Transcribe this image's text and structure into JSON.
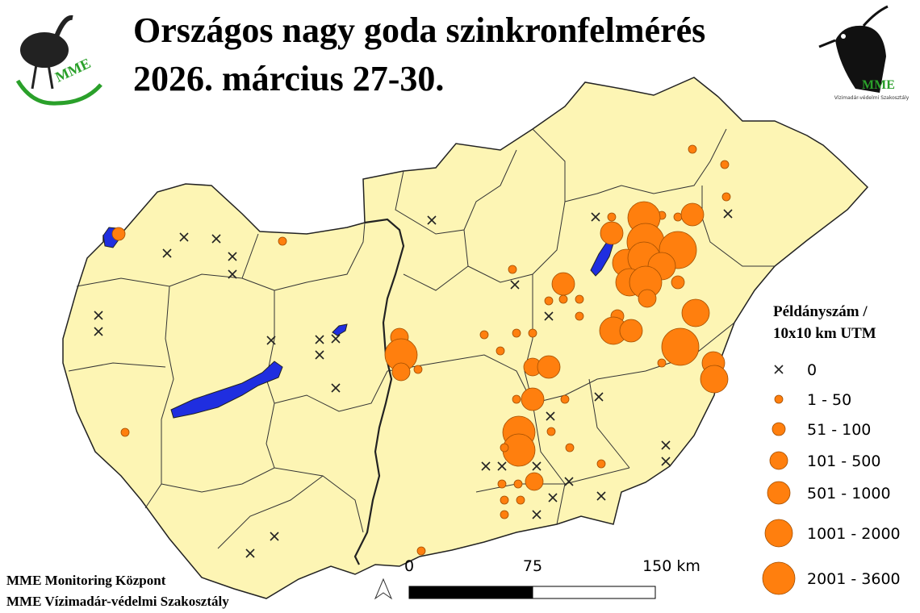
{
  "header": {
    "title_line1": "Országos nagy goda szinkronfelmérés",
    "title_line2": "2026. március 27-30."
  },
  "logos": {
    "left": "MME",
    "right": "MME",
    "right_sub": "Vízimadár-védelmi Szakosztály"
  },
  "legend": {
    "title_line1": "Példányszám /",
    "title_line2": "10x10 km UTM",
    "items": [
      "0",
      "1 - 50",
      "51 - 100",
      "101 - 500",
      "501 - 1000",
      "1001 - 2000",
      "2001 - 3600"
    ]
  },
  "scale_bar": {
    "labels": [
      "0",
      "75",
      "150 km"
    ]
  },
  "footer": {
    "line1": "MME Monitoring Központ",
    "line2": "MME Vízimadár-védelmi Szakosztály"
  }
}
